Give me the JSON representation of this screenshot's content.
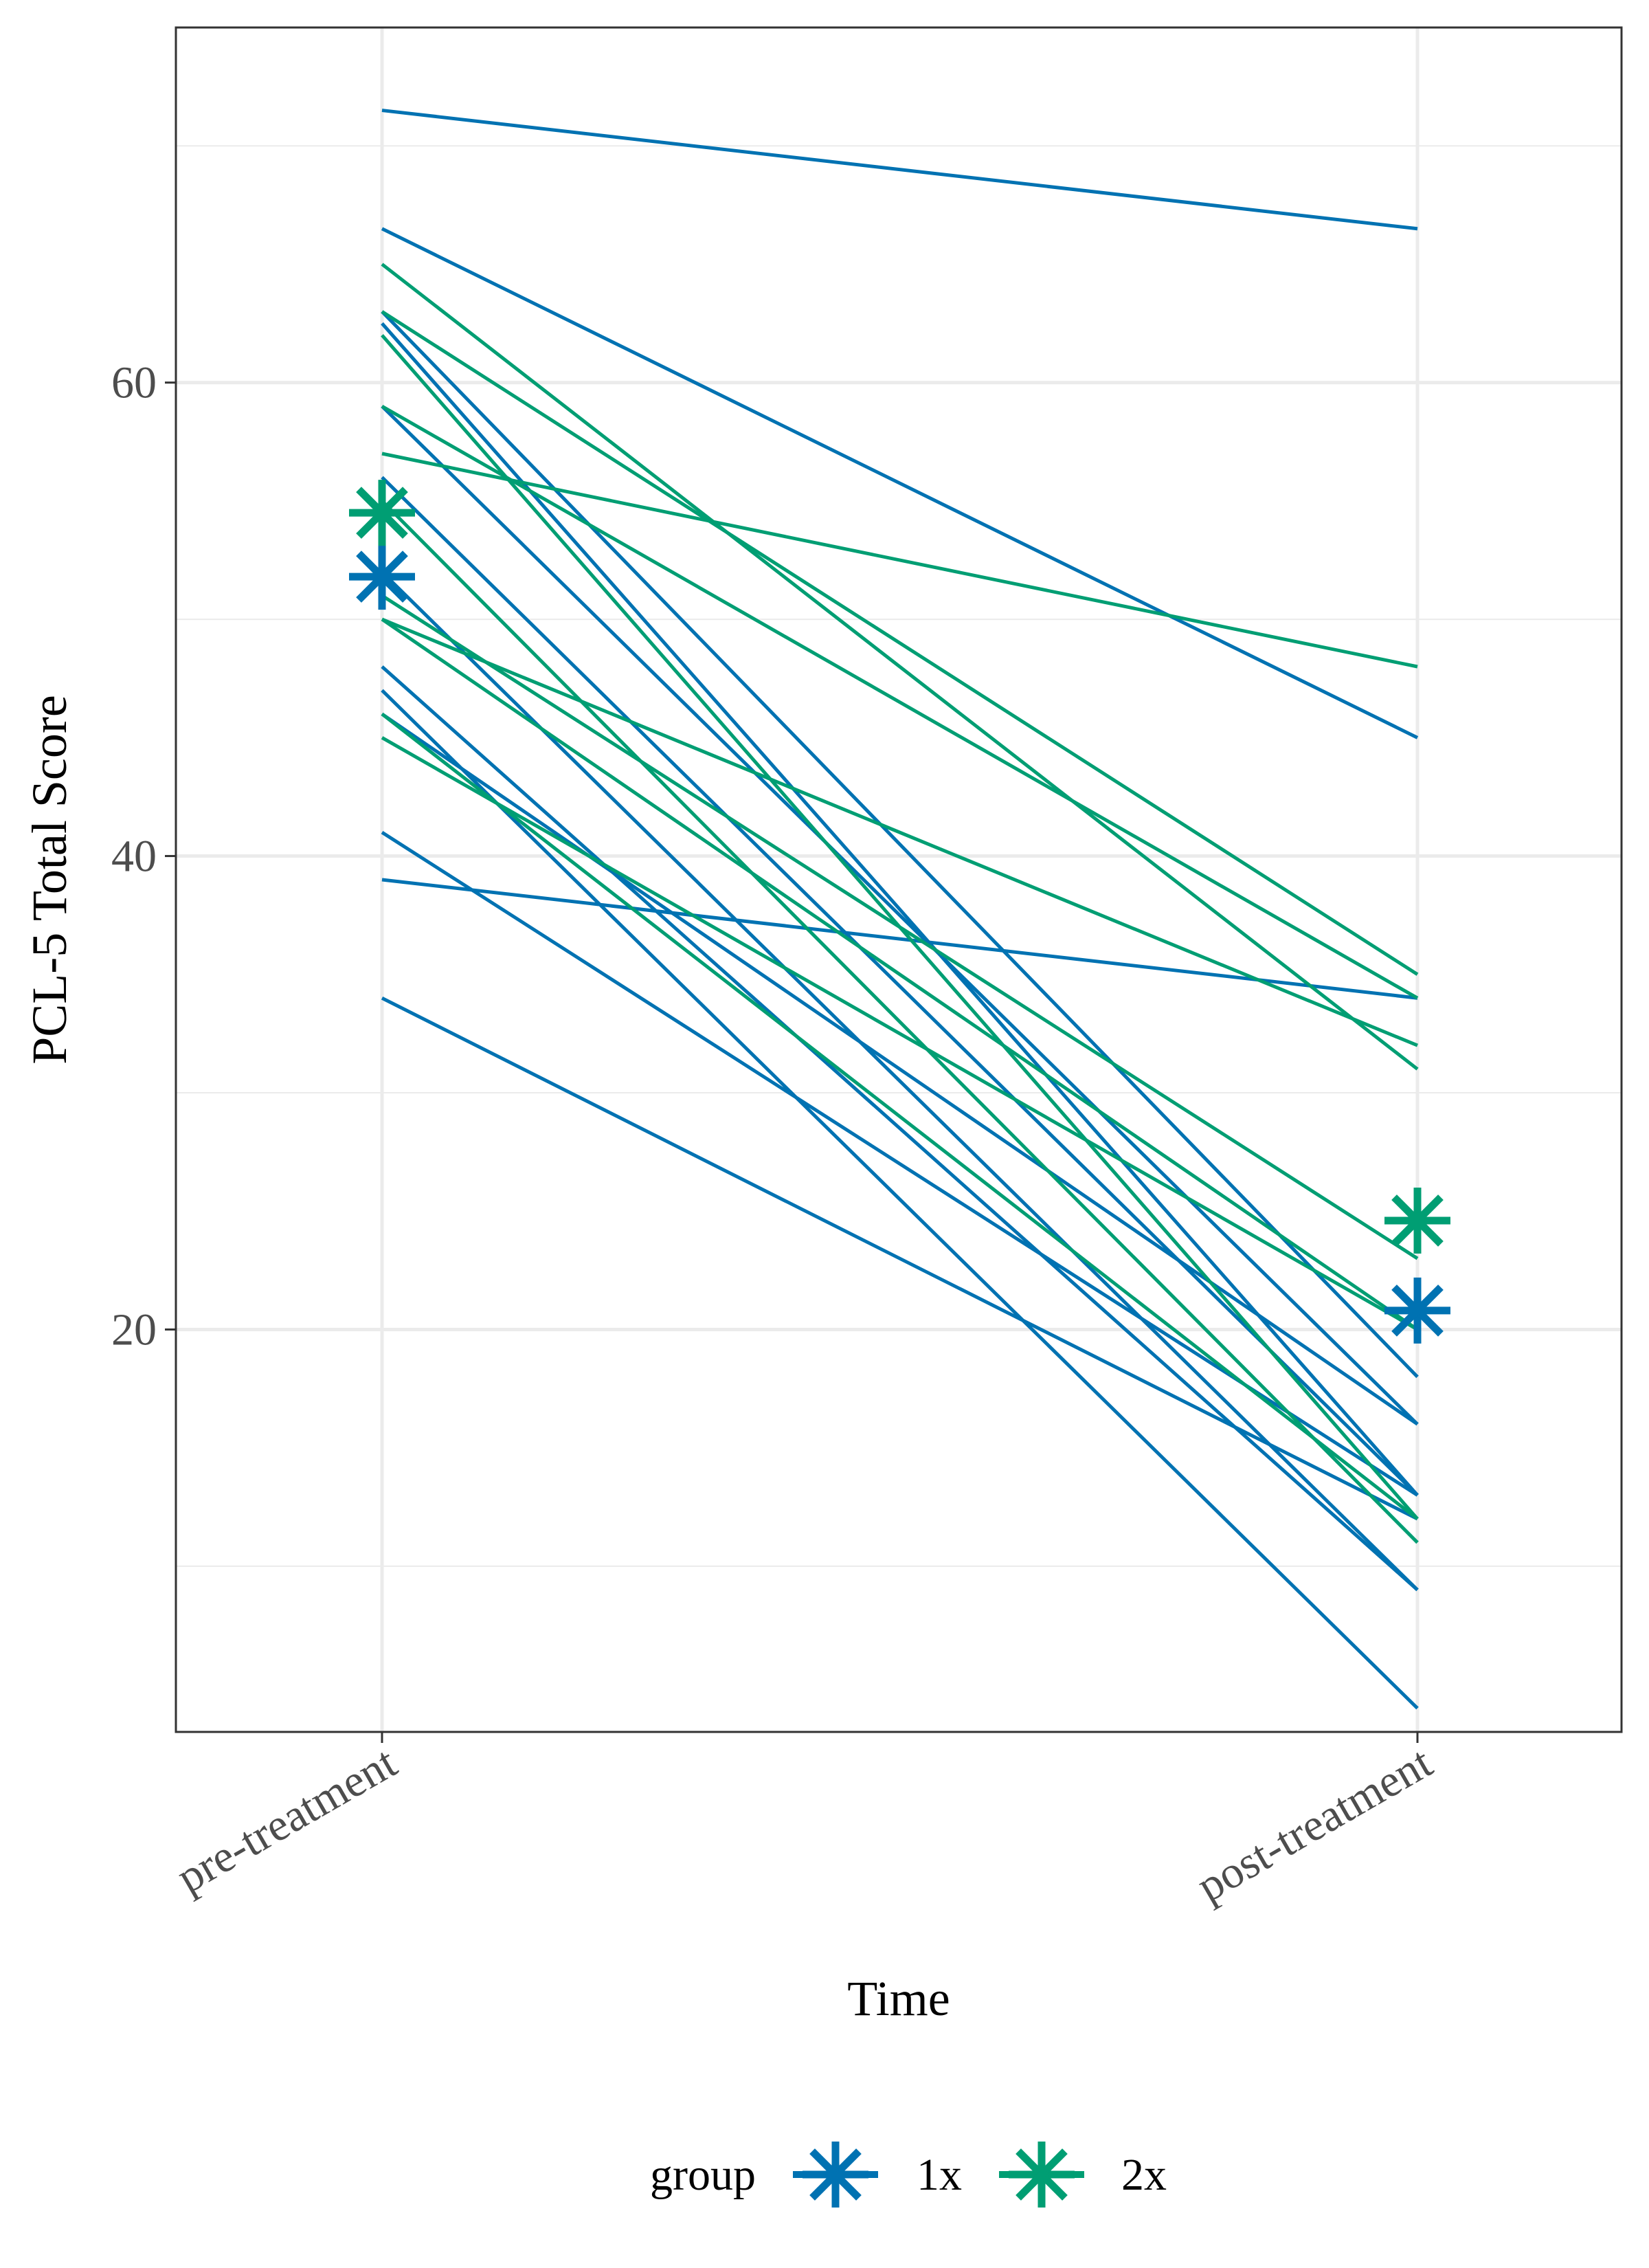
{
  "chart_data": {
    "type": "line",
    "title": "",
    "xlabel": "Time",
    "ylabel": "PCL-5 Total Score",
    "categories": [
      "pre-treatment",
      "post-treatment"
    ],
    "ylim": [
      3,
      75
    ],
    "yticks": [
      20,
      40,
      60
    ],
    "ytick_labels": [
      "20",
      "40",
      "60"
    ],
    "grid": true,
    "legend": {
      "title": "group",
      "position": "bottom",
      "entries": [
        "1x",
        "2x"
      ]
    },
    "colors": {
      "1x": "#0072B2",
      "2x": "#009E73"
    },
    "series": [
      {
        "group": "1x",
        "values": [
          71.5,
          66.5
        ]
      },
      {
        "group": "1x",
        "values": [
          66.5,
          45
        ]
      },
      {
        "group": "1x",
        "values": [
          63,
          18
        ]
      },
      {
        "group": "1x",
        "values": [
          62.5,
          13
        ]
      },
      {
        "group": "1x",
        "values": [
          59,
          16
        ]
      },
      {
        "group": "1x",
        "values": [
          56,
          13
        ]
      },
      {
        "group": "1x",
        "values": [
          52,
          9
        ]
      },
      {
        "group": "1x",
        "values": [
          48,
          9
        ]
      },
      {
        "group": "1x",
        "values": [
          47,
          4
        ]
      },
      {
        "group": "1x",
        "values": [
          46,
          16
        ]
      },
      {
        "group": "1x",
        "values": [
          41,
          13
        ]
      },
      {
        "group": "1x",
        "values": [
          39,
          34
        ]
      },
      {
        "group": "1x",
        "values": [
          34,
          12
        ]
      },
      {
        "group": "2x",
        "values": [
          65,
          31
        ]
      },
      {
        "group": "2x",
        "values": [
          63,
          35
        ]
      },
      {
        "group": "2x",
        "values": [
          62,
          12
        ]
      },
      {
        "group": "2x",
        "values": [
          59,
          34
        ]
      },
      {
        "group": "2x",
        "values": [
          57,
          48
        ]
      },
      {
        "group": "2x",
        "values": [
          55,
          11
        ]
      },
      {
        "group": "2x",
        "values": [
          51,
          23
        ]
      },
      {
        "group": "2x",
        "values": [
          50,
          32
        ]
      },
      {
        "group": "2x",
        "values": [
          50,
          20
        ]
      },
      {
        "group": "2x",
        "values": [
          46,
          12
        ]
      },
      {
        "group": "2x",
        "values": [
          45,
          20
        ]
      }
    ],
    "means": [
      {
        "group": "1x",
        "values": [
          51.8,
          20.8
        ]
      },
      {
        "group": "2x",
        "values": [
          54.5,
          24.6
        ]
      }
    ]
  }
}
